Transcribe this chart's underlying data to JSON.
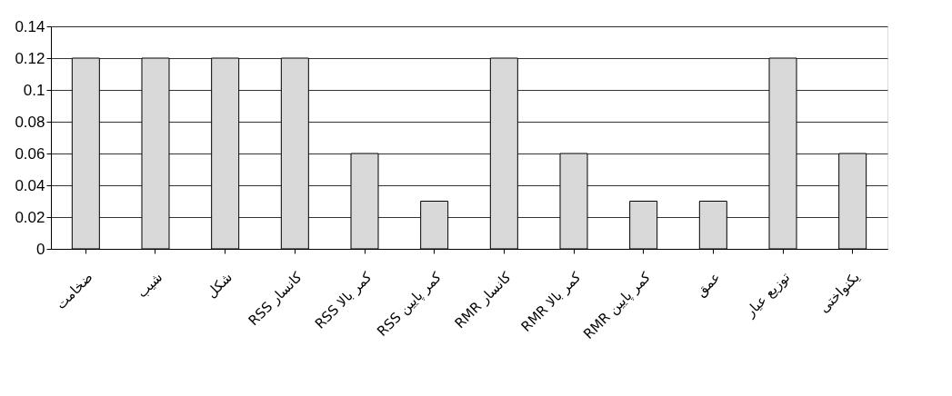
{
  "chart_data": {
    "type": "bar",
    "categories": [
      "ضخامت",
      "شیب",
      "شکل",
      "RSS کانسار",
      "RSS کمر بالا",
      "RSS کمر پایین",
      "RMR کانسار",
      "RMR کمر بالا",
      "RMR کمر پایین",
      "عمق",
      "توزیع عیار",
      "یکنواختی"
    ],
    "values": [
      0.12,
      0.12,
      0.12,
      0.12,
      0.06,
      0.03,
      0.12,
      0.06,
      0.03,
      0.03,
      0.12,
      0.06
    ],
    "color": "#d9d9d9",
    "ylim": [
      0,
      0.14
    ],
    "yticks": [
      0,
      0.02,
      0.04,
      0.06,
      0.08,
      0.1,
      0.12,
      0.14
    ],
    "grid": "y"
  }
}
